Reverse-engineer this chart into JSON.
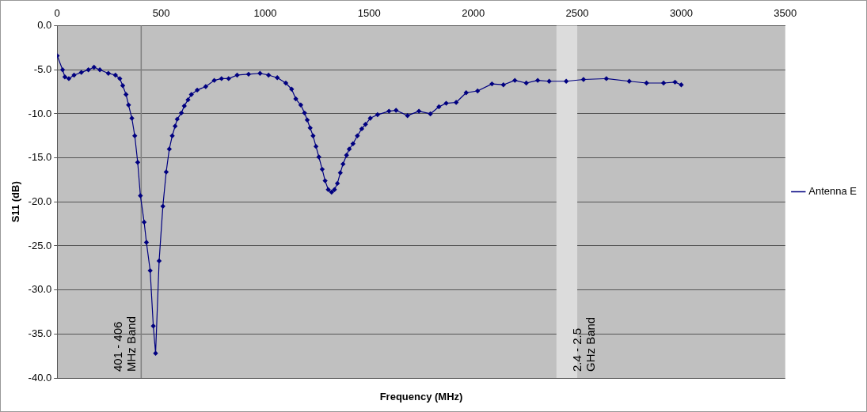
{
  "chart_data": {
    "type": "line",
    "xlabel": "Frequency (MHz)",
    "ylabel": "S11 (dB)",
    "x": [
      0,
      26,
      37,
      56,
      81,
      116,
      150,
      177,
      205,
      246,
      280,
      301,
      315,
      331,
      343,
      359,
      373,
      387,
      400,
      418,
      429,
      447,
      462,
      473,
      490,
      508,
      524,
      539,
      553,
      567,
      577,
      597,
      611,
      629,
      645,
      673,
      714,
      755,
      790,
      824,
      865,
      920,
      975,
      1016,
      1058,
      1099,
      1127,
      1147,
      1171,
      1189,
      1202,
      1216,
      1230,
      1244,
      1258,
      1274,
      1288,
      1303,
      1319,
      1333,
      1347,
      1361,
      1374,
      1391,
      1404,
      1422,
      1443,
      1464,
      1482,
      1505,
      1540,
      1595,
      1629,
      1684,
      1739,
      1794,
      1835,
      1870,
      1918,
      1966,
      2021,
      2090,
      2145,
      2200,
      2255,
      2310,
      2365,
      2447,
      2530,
      2640,
      2750,
      2833,
      2915,
      2970,
      3000
    ],
    "series": [
      {
        "name": "Antenna E",
        "color": "#000080",
        "values": [
          -3.4,
          -5.0,
          -5.8,
          -6.0,
          -5.6,
          -5.3,
          -5.0,
          -4.7,
          -5.0,
          -5.4,
          -5.6,
          -6.0,
          -6.8,
          -7.8,
          -9.0,
          -10.5,
          -12.5,
          -15.5,
          -19.3,
          -22.3,
          -24.6,
          -27.8,
          -34.1,
          -37.2,
          -26.7,
          -20.5,
          -16.6,
          -14.0,
          -12.5,
          -11.4,
          -10.6,
          -9.9,
          -9.1,
          -8.4,
          -7.8,
          -7.3,
          -6.9,
          -6.2,
          -6.0,
          -6.0,
          -5.6,
          -5.5,
          -5.4,
          -5.6,
          -5.9,
          -6.5,
          -7.2,
          -8.3,
          -9.0,
          -9.9,
          -10.7,
          -11.6,
          -12.5,
          -13.7,
          -14.9,
          -16.3,
          -17.6,
          -18.6,
          -18.9,
          -18.6,
          -17.9,
          -16.7,
          -15.7,
          -14.7,
          -14.0,
          -13.4,
          -12.5,
          -11.7,
          -11.2,
          -10.5,
          -10.1,
          -9.7,
          -9.6,
          -10.2,
          -9.7,
          -10.0,
          -9.2,
          -8.8,
          -8.7,
          -7.6,
          -7.4,
          -6.6,
          -6.7,
          -6.2,
          -6.5,
          -6.2,
          -6.3,
          -6.3,
          -6.1,
          -6.0,
          -6.3,
          -6.5,
          -6.5,
          -6.4,
          -6.7
        ]
      }
    ],
    "xlim": [
      0,
      3500
    ],
    "xticks": [
      0,
      500,
      1000,
      1500,
      2000,
      2500,
      3000,
      3500
    ],
    "ylim": [
      -40,
      0
    ],
    "yticks": [
      {
        "value": 0,
        "label": "0.0"
      },
      {
        "value": -5,
        "label": "-5.0"
      },
      {
        "value": -10,
        "label": "-10.0"
      },
      {
        "value": -15,
        "label": "-15.0"
      },
      {
        "value": -20,
        "label": "-20.0"
      },
      {
        "value": -25,
        "label": "-25.0"
      },
      {
        "value": -30,
        "label": "-30.0"
      },
      {
        "value": -35,
        "label": "-35.0"
      },
      {
        "value": -40,
        "label": "-40.0"
      }
    ],
    "bands": [
      {
        "axis": "x",
        "from": 401,
        "to": 406,
        "label": "401 - 406\nMHz Band",
        "color": "#808080"
      },
      {
        "axis": "x",
        "from": 2400,
        "to": 2500,
        "label": "2.4 - 2.5\nGHz Band",
        "color": "#dcdcdc"
      }
    ],
    "grid": "y",
    "legend": "right",
    "marker": "diamond",
    "line_style": "solid"
  }
}
